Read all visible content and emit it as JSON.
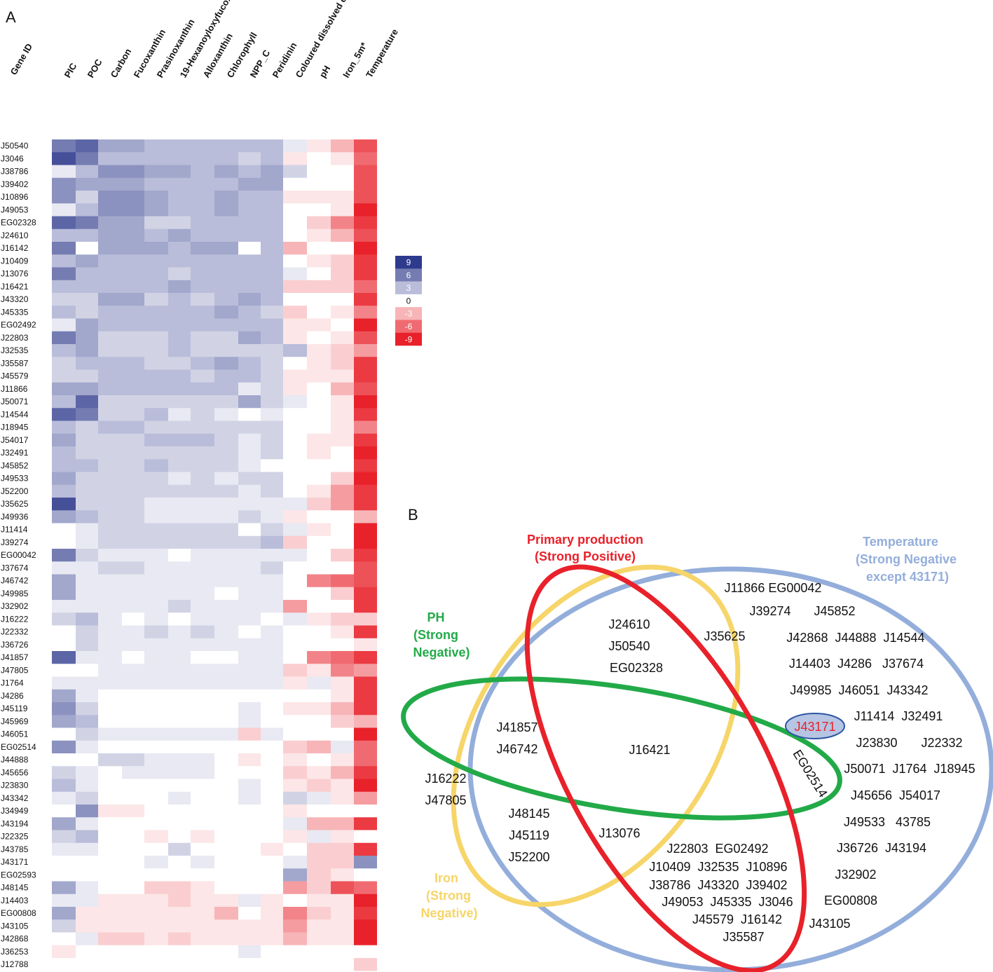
{
  "figure": {
    "panel_a_label": "A",
    "panel_b_label": "B"
  },
  "chart_data": [
    {
      "type": "heatmap",
      "title": "",
      "row_header": "Gene ID",
      "columns": [
        "PIC",
        "POC",
        "Carbon",
        "Fucoxanthin",
        "Prasinoxanthin",
        "19-Hexanoyloxyfucoxanthin",
        "Alloxanthin",
        "Chlorophyll",
        "NPP_C",
        "Peridinin",
        "Coloured dissolved organic matter",
        "pH",
        "Iron_5m*",
        "Temperature"
      ],
      "rows": [
        "J50540",
        "J3046",
        "J38786",
        "J39402",
        "J10896",
        "J49053",
        "EG02328",
        "J24610",
        "J16142",
        "J10409",
        "J13076",
        "J16421",
        "J43320",
        "J45335",
        "EG02492",
        "J22803",
        "J32535",
        "J35587",
        "J45579",
        "J11866",
        "J50071",
        "J14544",
        "J18945",
        "J54017",
        "J32491",
        "J45852",
        "J49533",
        "J52200",
        "J35625",
        "J49936",
        "J11414",
        "J39274",
        "EG00042",
        "J37674",
        "J46742",
        "J49985",
        "J32902",
        "J16222",
        "J22332",
        "J36726",
        "J41857",
        "J47805",
        "J1764",
        "J4286",
        "J45119",
        "J45969",
        "J46051",
        "EG02514",
        "J44888",
        "J45656",
        "J23830",
        "J43342",
        "J34949",
        "J43194",
        "J22325",
        "J43785",
        "J43171",
        "EG02593",
        "J48145",
        "J14403",
        "EG00808",
        "J43105",
        "J42868",
        "J36253",
        "J12788"
      ],
      "values": [
        [
          6,
          7,
          4,
          4,
          3,
          3,
          3,
          3,
          3,
          3,
          1,
          -1,
          -3,
          -7
        ],
        [
          8,
          6,
          3,
          3,
          3,
          3,
          3,
          3,
          2,
          3,
          -1,
          0,
          -1,
          -6
        ],
        [
          1,
          3,
          5,
          5,
          4,
          4,
          3,
          4,
          3,
          4,
          2,
          0,
          0,
          -7
        ],
        [
          5,
          4,
          4,
          4,
          3,
          3,
          3,
          3,
          4,
          4,
          0,
          0,
          0,
          -7
        ],
        [
          5,
          2,
          5,
          5,
          4,
          3,
          3,
          4,
          3,
          3,
          -1,
          -1,
          -1,
          -7
        ],
        [
          1,
          3,
          5,
          5,
          4,
          3,
          3,
          4,
          3,
          3,
          0,
          0,
          -1,
          -9
        ],
        [
          7,
          6,
          4,
          4,
          2,
          2,
          3,
          3,
          3,
          3,
          0,
          -2,
          -5,
          -8
        ],
        [
          3,
          3,
          4,
          4,
          3,
          4,
          3,
          3,
          3,
          3,
          0,
          -1,
          -3,
          -7
        ],
        [
          6,
          0,
          4,
          4,
          4,
          3,
          4,
          4,
          0,
          3,
          -3,
          0,
          0,
          -9
        ],
        [
          3,
          4,
          3,
          3,
          3,
          3,
          3,
          3,
          3,
          3,
          0,
          -1,
          -2,
          -8
        ],
        [
          6,
          3,
          3,
          3,
          3,
          2,
          3,
          3,
          3,
          3,
          1,
          0,
          -2,
          -8
        ],
        [
          3,
          3,
          3,
          3,
          3,
          4,
          3,
          3,
          3,
          3,
          -2,
          -2,
          -2,
          -6
        ],
        [
          2,
          2,
          4,
          4,
          2,
          3,
          2,
          3,
          4,
          3,
          0,
          0,
          0,
          -8
        ],
        [
          3,
          2,
          3,
          3,
          3,
          3,
          3,
          4,
          3,
          2,
          -2,
          0,
          -1,
          -5
        ],
        [
          1,
          4,
          3,
          3,
          3,
          3,
          3,
          3,
          3,
          3,
          -1,
          -1,
          0,
          -9
        ],
        [
          6,
          4,
          2,
          2,
          2,
          3,
          2,
          2,
          4,
          3,
          -1,
          0,
          -1,
          -7
        ],
        [
          3,
          4,
          2,
          2,
          2,
          3,
          2,
          2,
          2,
          2,
          3,
          -1,
          -2,
          -4
        ],
        [
          2,
          3,
          3,
          3,
          2,
          2,
          3,
          4,
          3,
          2,
          0,
          -1,
          -2,
          -8
        ],
        [
          2,
          2,
          3,
          3,
          3,
          3,
          2,
          3,
          3,
          2,
          -1,
          -1,
          -1,
          -8
        ],
        [
          4,
          4,
          3,
          3,
          3,
          3,
          3,
          3,
          1,
          2,
          -1,
          0,
          -3,
          -7
        ],
        [
          3,
          7,
          2,
          2,
          2,
          2,
          2,
          2,
          4,
          2,
          1,
          0,
          -1,
          -9
        ],
        [
          7,
          6,
          2,
          2,
          3,
          1,
          2,
          1,
          0,
          1,
          0,
          0,
          -1,
          -8
        ],
        [
          3,
          2,
          3,
          3,
          2,
          2,
          2,
          2,
          2,
          2,
          0,
          0,
          -1,
          -5
        ],
        [
          4,
          2,
          2,
          2,
          3,
          3,
          3,
          2,
          1,
          2,
          0,
          -1,
          -1,
          -8
        ],
        [
          3,
          2,
          2,
          2,
          2,
          2,
          2,
          2,
          1,
          2,
          0,
          -1,
          0,
          -9
        ],
        [
          3,
          3,
          2,
          2,
          3,
          2,
          2,
          2,
          1,
          0,
          0,
          0,
          0,
          -8
        ],
        [
          4,
          2,
          2,
          2,
          2,
          1,
          2,
          1,
          2,
          2,
          0,
          0,
          -2,
          -9
        ],
        [
          3,
          2,
          2,
          2,
          2,
          2,
          2,
          2,
          1,
          2,
          0,
          -1,
          -4,
          -8
        ],
        [
          8,
          2,
          2,
          2,
          1,
          1,
          1,
          1,
          1,
          1,
          1,
          -2,
          -4,
          -8
        ],
        [
          4,
          3,
          2,
          2,
          1,
          1,
          1,
          1,
          2,
          1,
          -1,
          0,
          0,
          -3
        ],
        [
          0,
          1,
          2,
          2,
          2,
          2,
          2,
          2,
          0,
          2,
          1,
          -1,
          0,
          -9
        ],
        [
          0,
          1,
          2,
          2,
          2,
          2,
          2,
          2,
          2,
          3,
          -2,
          0,
          0,
          -9
        ],
        [
          6,
          2,
          1,
          1,
          1,
          0,
          1,
          1,
          1,
          1,
          1,
          0,
          -2,
          -8
        ],
        [
          1,
          1,
          2,
          2,
          1,
          1,
          1,
          1,
          1,
          2,
          0,
          0,
          0,
          -7
        ],
        [
          4,
          1,
          1,
          1,
          1,
          1,
          1,
          1,
          1,
          1,
          0,
          -5,
          -6,
          -7
        ],
        [
          4,
          1,
          1,
          1,
          1,
          1,
          1,
          0,
          1,
          1,
          0,
          0,
          -2,
          -8
        ],
        [
          1,
          1,
          1,
          1,
          1,
          2,
          1,
          1,
          1,
          1,
          -4,
          0,
          0,
          -8
        ],
        [
          2,
          3,
          1,
          0,
          1,
          0,
          1,
          1,
          1,
          0,
          1,
          -1,
          -2,
          -2
        ],
        [
          0,
          2,
          1,
          1,
          2,
          1,
          2,
          1,
          0,
          1,
          0,
          0,
          -1,
          -8
        ],
        [
          0,
          2,
          1,
          1,
          1,
          1,
          1,
          1,
          1,
          1,
          0,
          0,
          0,
          -1
        ],
        [
          7,
          1,
          1,
          0,
          1,
          1,
          0,
          0,
          1,
          1,
          0,
          -5,
          -6,
          -8
        ],
        [
          0,
          0,
          1,
          1,
          1,
          1,
          1,
          1,
          1,
          1,
          -2,
          -1,
          -5,
          -4
        ],
        [
          1,
          1,
          1,
          1,
          1,
          1,
          1,
          1,
          1,
          1,
          -1,
          1,
          -1,
          -8
        ],
        [
          4,
          1,
          0,
          0,
          0,
          0,
          0,
          0,
          0,
          0,
          0,
          0,
          -1,
          -8
        ],
        [
          5,
          2,
          0,
          0,
          0,
          0,
          0,
          0,
          1,
          0,
          -1,
          -1,
          -3,
          -8
        ],
        [
          4,
          3,
          0,
          0,
          0,
          0,
          0,
          0,
          1,
          0,
          0,
          0,
          -2,
          -3
        ],
        [
          0,
          2,
          1,
          1,
          1,
          1,
          1,
          1,
          -2,
          1,
          0,
          0,
          0,
          -9
        ],
        [
          5,
          1,
          0,
          0,
          0,
          0,
          0,
          0,
          0,
          0,
          -2,
          -3,
          1,
          -6
        ],
        [
          0,
          0,
          2,
          2,
          1,
          1,
          1,
          0,
          -1,
          0,
          -1,
          0,
          -1,
          -6
        ],
        [
          2,
          1,
          0,
          1,
          1,
          1,
          1,
          0,
          0,
          0,
          -2,
          -1,
          -3,
          -8
        ],
        [
          3,
          1,
          0,
          0,
          0,
          0,
          0,
          0,
          1,
          0,
          -1,
          -2,
          -1,
          -9
        ],
        [
          1,
          2,
          0,
          0,
          0,
          1,
          0,
          0,
          1,
          0,
          2,
          1,
          -1,
          -4
        ],
        [
          0,
          5,
          -1,
          -1,
          0,
          0,
          0,
          0,
          0,
          0,
          -1,
          0,
          0,
          0
        ],
        [
          4,
          1,
          0,
          0,
          0,
          0,
          0,
          0,
          0,
          0,
          1,
          -3,
          -3,
          -8
        ],
        [
          2,
          3,
          0,
          0,
          -1,
          0,
          -1,
          0,
          0,
          0,
          -1,
          1,
          -1,
          0
        ],
        [
          1,
          1,
          0,
          0,
          0,
          2,
          0,
          0,
          0,
          -1,
          0,
          -2,
          -2,
          -8
        ],
        [
          0,
          0,
          0,
          0,
          1,
          0,
          1,
          0,
          0,
          0,
          1,
          -2,
          -2,
          5
        ],
        [
          0,
          0,
          0,
          0,
          0,
          0,
          0,
          0,
          0,
          0,
          4,
          -2,
          -1,
          0
        ],
        [
          4,
          1,
          0,
          0,
          -2,
          -2,
          -1,
          0,
          0,
          0,
          -4,
          -2,
          -7,
          -6
        ],
        [
          1,
          1,
          -1,
          -1,
          -1,
          -2,
          -1,
          -1,
          1,
          -1,
          0,
          -1,
          -1,
          -9
        ],
        [
          4,
          -1,
          -1,
          -1,
          -1,
          -1,
          -1,
          -3,
          0,
          -1,
          -5,
          -2,
          -1,
          -8
        ],
        [
          2,
          -1,
          -1,
          -1,
          -1,
          -1,
          -1,
          -1,
          -1,
          -1,
          -4,
          -1,
          -1,
          -9
        ],
        [
          0,
          1,
          -2,
          -2,
          -1,
          -2,
          -1,
          -1,
          -1,
          -1,
          -3,
          -1,
          -1,
          -9
        ],
        [
          -1,
          0,
          0,
          0,
          0,
          0,
          0,
          0,
          1,
          0,
          0,
          0,
          0,
          0
        ],
        [
          0,
          0,
          0,
          0,
          0,
          0,
          0,
          0,
          0,
          0,
          0,
          0,
          0,
          -2
        ]
      ],
      "color_scale": {
        "ticks": [
          9,
          6,
          3,
          0,
          -3,
          -6,
          -9
        ],
        "positive_color": "#2E3A8C",
        "negative_color": "#E8212A",
        "zero_color": "#FFFFFF"
      }
    }
  ],
  "venn": {
    "sets": {
      "primary": {
        "title1": "Primary production",
        "title2": "(Strong Positive)",
        "color": "#E8212A"
      },
      "temperature": {
        "title1": "Temperature",
        "title2": "(Strong Negative",
        "title3": "except 43171)",
        "color": "#94AEDB"
      },
      "ph": {
        "title1": "PH",
        "title2": "(Strong",
        "title3": "Negative)",
        "color": "#22AA48"
      },
      "iron": {
        "title1": "Iron",
        "title2": "(Strong",
        "title3": "Negative)",
        "color": "#F6D569"
      }
    },
    "labels": {
      "l01": "J11866  EG00042",
      "l02": "J39274",
      "l03": "J45852",
      "l04": "J24610",
      "l05": "J35625",
      "l06": "J42868  J44888  J14544",
      "l07": "J50540",
      "l08": "J14403  J4286   J37674",
      "l09": "EG02328",
      "l10": "J49985  J46051  J43342",
      "l11": "J41857",
      "l12": "J43171",
      "l13": "J11414  J32491",
      "l14": "J46742",
      "l15": "J16421",
      "l16": "J23830",
      "l17": "J22332",
      "l18": "EG02514",
      "l19": "J50071  J1764  J18945",
      "l20": "J16222",
      "l21": "J47805",
      "l22": "J45656  J54017",
      "l23": "J48145",
      "l24": "J49533   43785",
      "l25": "J45119",
      "l26": "J13076",
      "l27": "J22803  EG02492",
      "l28": "J36726  J43194",
      "l29": "J52200",
      "l30": "J10409  J32535  J10896",
      "l31": "J32902",
      "l32": "J38786  J43320  J39402",
      "l33": "J49053  J45335  J3046",
      "l34": "EG00808",
      "l35": "J45579  J16142",
      "l36": "J43105",
      "l37": "J35587"
    }
  }
}
